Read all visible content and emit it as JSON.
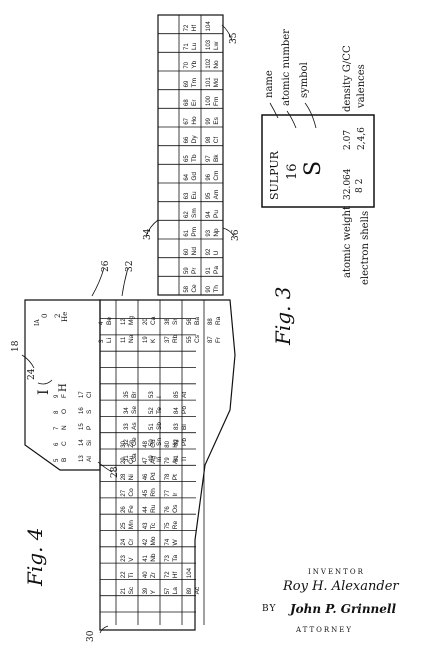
{
  "figures": {
    "fig4_label": "Fig. 4",
    "fig3_label": "Fig. 3"
  },
  "ref_numerals": {
    "r18": "18",
    "r24": "24",
    "r26": "26",
    "r28": "28",
    "r30": "30",
    "r32": "32",
    "r34": "34",
    "r35": "35",
    "r36": "36"
  },
  "legend_box": {
    "element_name": "SULPUR",
    "atomic_number": "16",
    "symbol": "S",
    "atomic_weight": "32.064",
    "electron_shells": "8 2",
    "density": "2.07",
    "valences": "2,4,6"
  },
  "legend_labels": {
    "name": "name",
    "atomic_number": "atomic number",
    "symbol": "symbol",
    "density": "density G/CC",
    "valences": "valences",
    "atomic_weight": "atomic weight",
    "electron_shells": "electron shells"
  },
  "inventor": {
    "heading": "INVENTOR",
    "name": "Roy H. Alexander",
    "by": "BY",
    "signature": "John P. Grinnell",
    "role": "ATTORNEY"
  },
  "table": {
    "hydrogen": {
      "group": "I",
      "symbol": "H",
      "header": "IA"
    },
    "helium": {
      "number": "2",
      "symbol": "He",
      "group": "0"
    },
    "group_headers_left": [
      "IIIB",
      "IVB",
      "VB",
      "VIB",
      "VIIB",
      "VIII",
      "IB",
      "IIB"
    ],
    "group_headers_right": [
      "IIIA",
      "IVA",
      "VA",
      "VIA",
      "VIIA"
    ],
    "row_period2_right": [
      {
        "n": "5",
        "s": "B"
      },
      {
        "n": "6",
        "s": "C"
      },
      {
        "n": "7",
        "s": "N"
      },
      {
        "n": "8",
        "s": "O"
      },
      {
        "n": "9",
        "s": "F"
      }
    ],
    "row_period3_right": [
      {
        "n": "13",
        "s": "Al"
      },
      {
        "n": "14",
        "s": "Si"
      },
      {
        "n": "15",
        "s": "P"
      },
      {
        "n": "16",
        "s": "S"
      },
      {
        "n": "17",
        "s": "Cl"
      }
    ],
    "row_period4_right": [
      {
        "n": "31",
        "s": "Ga"
      },
      {
        "n": "32",
        "s": "Ge"
      },
      {
        "n": "33",
        "s": "As"
      },
      {
        "n": "34",
        "s": "Se"
      },
      {
        "n": "35",
        "s": "Br"
      }
    ],
    "row_period5_right": [
      {
        "n": "49",
        "s": "In"
      },
      {
        "n": "50",
        "s": "Sn"
      },
      {
        "n": "51",
        "s": "Sb"
      },
      {
        "n": "52",
        "s": "Te"
      },
      {
        "n": "53",
        "s": "I"
      }
    ],
    "row_period6_right": [
      {
        "n": "81",
        "s": "Tl"
      },
      {
        "n": "82",
        "s": "Pb"
      },
      {
        "n": "83",
        "s": "Bi"
      },
      {
        "n": "84",
        "s": "Po"
      },
      {
        "n": "85",
        "s": "At"
      }
    ],
    "noble_gases": [
      {
        "n": "2",
        "s": "He"
      },
      {
        "n": "10",
        "s": "Ne"
      },
      {
        "n": "18",
        "s": "Ar"
      },
      {
        "n": "36",
        "s": "Kr"
      },
      {
        "n": "54",
        "s": "Xe"
      },
      {
        "n": "86",
        "s": "Rn"
      }
    ],
    "group1": [
      {
        "n": "3",
        "s": "Li"
      },
      {
        "n": "11",
        "s": "Na"
      },
      {
        "n": "19",
        "s": "K"
      },
      {
        "n": "37",
        "s": "Rb"
      },
      {
        "n": "55",
        "s": "Cs"
      },
      {
        "n": "87",
        "s": "Fr"
      }
    ],
    "group2": [
      {
        "n": "4",
        "s": "Be"
      },
      {
        "n": "12",
        "s": "Mg"
      },
      {
        "n": "20",
        "s": "Ca"
      },
      {
        "n": "38",
        "s": "Sr"
      },
      {
        "n": "56",
        "s": "Ba"
      },
      {
        "n": "88",
        "s": "Ra"
      }
    ],
    "transition_p4": [
      {
        "n": "21",
        "s": "Sc"
      },
      {
        "n": "22",
        "s": "Ti"
      },
      {
        "n": "23",
        "s": "V"
      },
      {
        "n": "24",
        "s": "Cr"
      },
      {
        "n": "25",
        "s": "Mn"
      },
      {
        "n": "26",
        "s": "Fe"
      },
      {
        "n": "27",
        "s": "Co"
      },
      {
        "n": "28",
        "s": "Ni"
      },
      {
        "n": "29",
        "s": "Cu"
      },
      {
        "n": "30",
        "s": "Zn"
      }
    ],
    "transition_p5": [
      {
        "n": "39",
        "s": "Y"
      },
      {
        "n": "40",
        "s": "Zr"
      },
      {
        "n": "41",
        "s": "Nb"
      },
      {
        "n": "42",
        "s": "Mo"
      },
      {
        "n": "43",
        "s": "Tc"
      },
      {
        "n": "44",
        "s": "Ru"
      },
      {
        "n": "45",
        "s": "Rh"
      },
      {
        "n": "46",
        "s": "Pd"
      },
      {
        "n": "47",
        "s": "Ag"
      },
      {
        "n": "48",
        "s": "Cd"
      }
    ],
    "transition_p6": [
      {
        "n": "57",
        "s": "La"
      },
      {
        "n": "72",
        "s": "Hf"
      },
      {
        "n": "73",
        "s": "Ta"
      },
      {
        "n": "74",
        "s": "W"
      },
      {
        "n": "75",
        "s": "Re"
      },
      {
        "n": "76",
        "s": "Os"
      },
      {
        "n": "77",
        "s": "Ir"
      },
      {
        "n": "78",
        "s": "Pt"
      },
      {
        "n": "79",
        "s": "Au"
      },
      {
        "n": "80",
        "s": "Hg"
      }
    ],
    "transition_p7": [
      {
        "n": "89",
        "s": "Ac"
      },
      {
        "n": "104",
        "s": ""
      }
    ],
    "lanthanides": [
      {
        "n": "58",
        "s": "Ce"
      },
      {
        "n": "59",
        "s": "Pr"
      },
      {
        "n": "60",
        "s": "Nd"
      },
      {
        "n": "61",
        "s": "Pm"
      },
      {
        "n": "62",
        "s": "Sm"
      },
      {
        "n": "63",
        "s": "Eu"
      },
      {
        "n": "64",
        "s": "Gd"
      },
      {
        "n": "65",
        "s": "Tb"
      },
      {
        "n": "66",
        "s": "Dy"
      },
      {
        "n": "67",
        "s": "Ho"
      },
      {
        "n": "68",
        "s": "Er"
      },
      {
        "n": "69",
        "s": "Tm"
      },
      {
        "n": "70",
        "s": "Yb"
      },
      {
        "n": "71",
        "s": "Lu"
      },
      {
        "n": "72",
        "s": "Hf"
      }
    ],
    "actinides": [
      {
        "n": "90",
        "s": "Th"
      },
      {
        "n": "91",
        "s": "Pa"
      },
      {
        "n": "92",
        "s": "U"
      },
      {
        "n": "93",
        "s": "Np"
      },
      {
        "n": "94",
        "s": "Pu"
      },
      {
        "n": "95",
        "s": "Am"
      },
      {
        "n": "96",
        "s": "Cm"
      },
      {
        "n": "97",
        "s": "Bk"
      },
      {
        "n": "98",
        "s": "Cf"
      },
      {
        "n": "99",
        "s": "Es"
      },
      {
        "n": "100",
        "s": "Fm"
      },
      {
        "n": "101",
        "s": "Md"
      },
      {
        "n": "102",
        "s": "No"
      },
      {
        "n": "103",
        "s": "Lw"
      },
      {
        "n": "104",
        "s": ""
      }
    ],
    "lanthanide_start": {
      "n": "57",
      "s": "La"
    },
    "actinide_start": {
      "n": "89",
      "s": "Ac"
    }
  }
}
